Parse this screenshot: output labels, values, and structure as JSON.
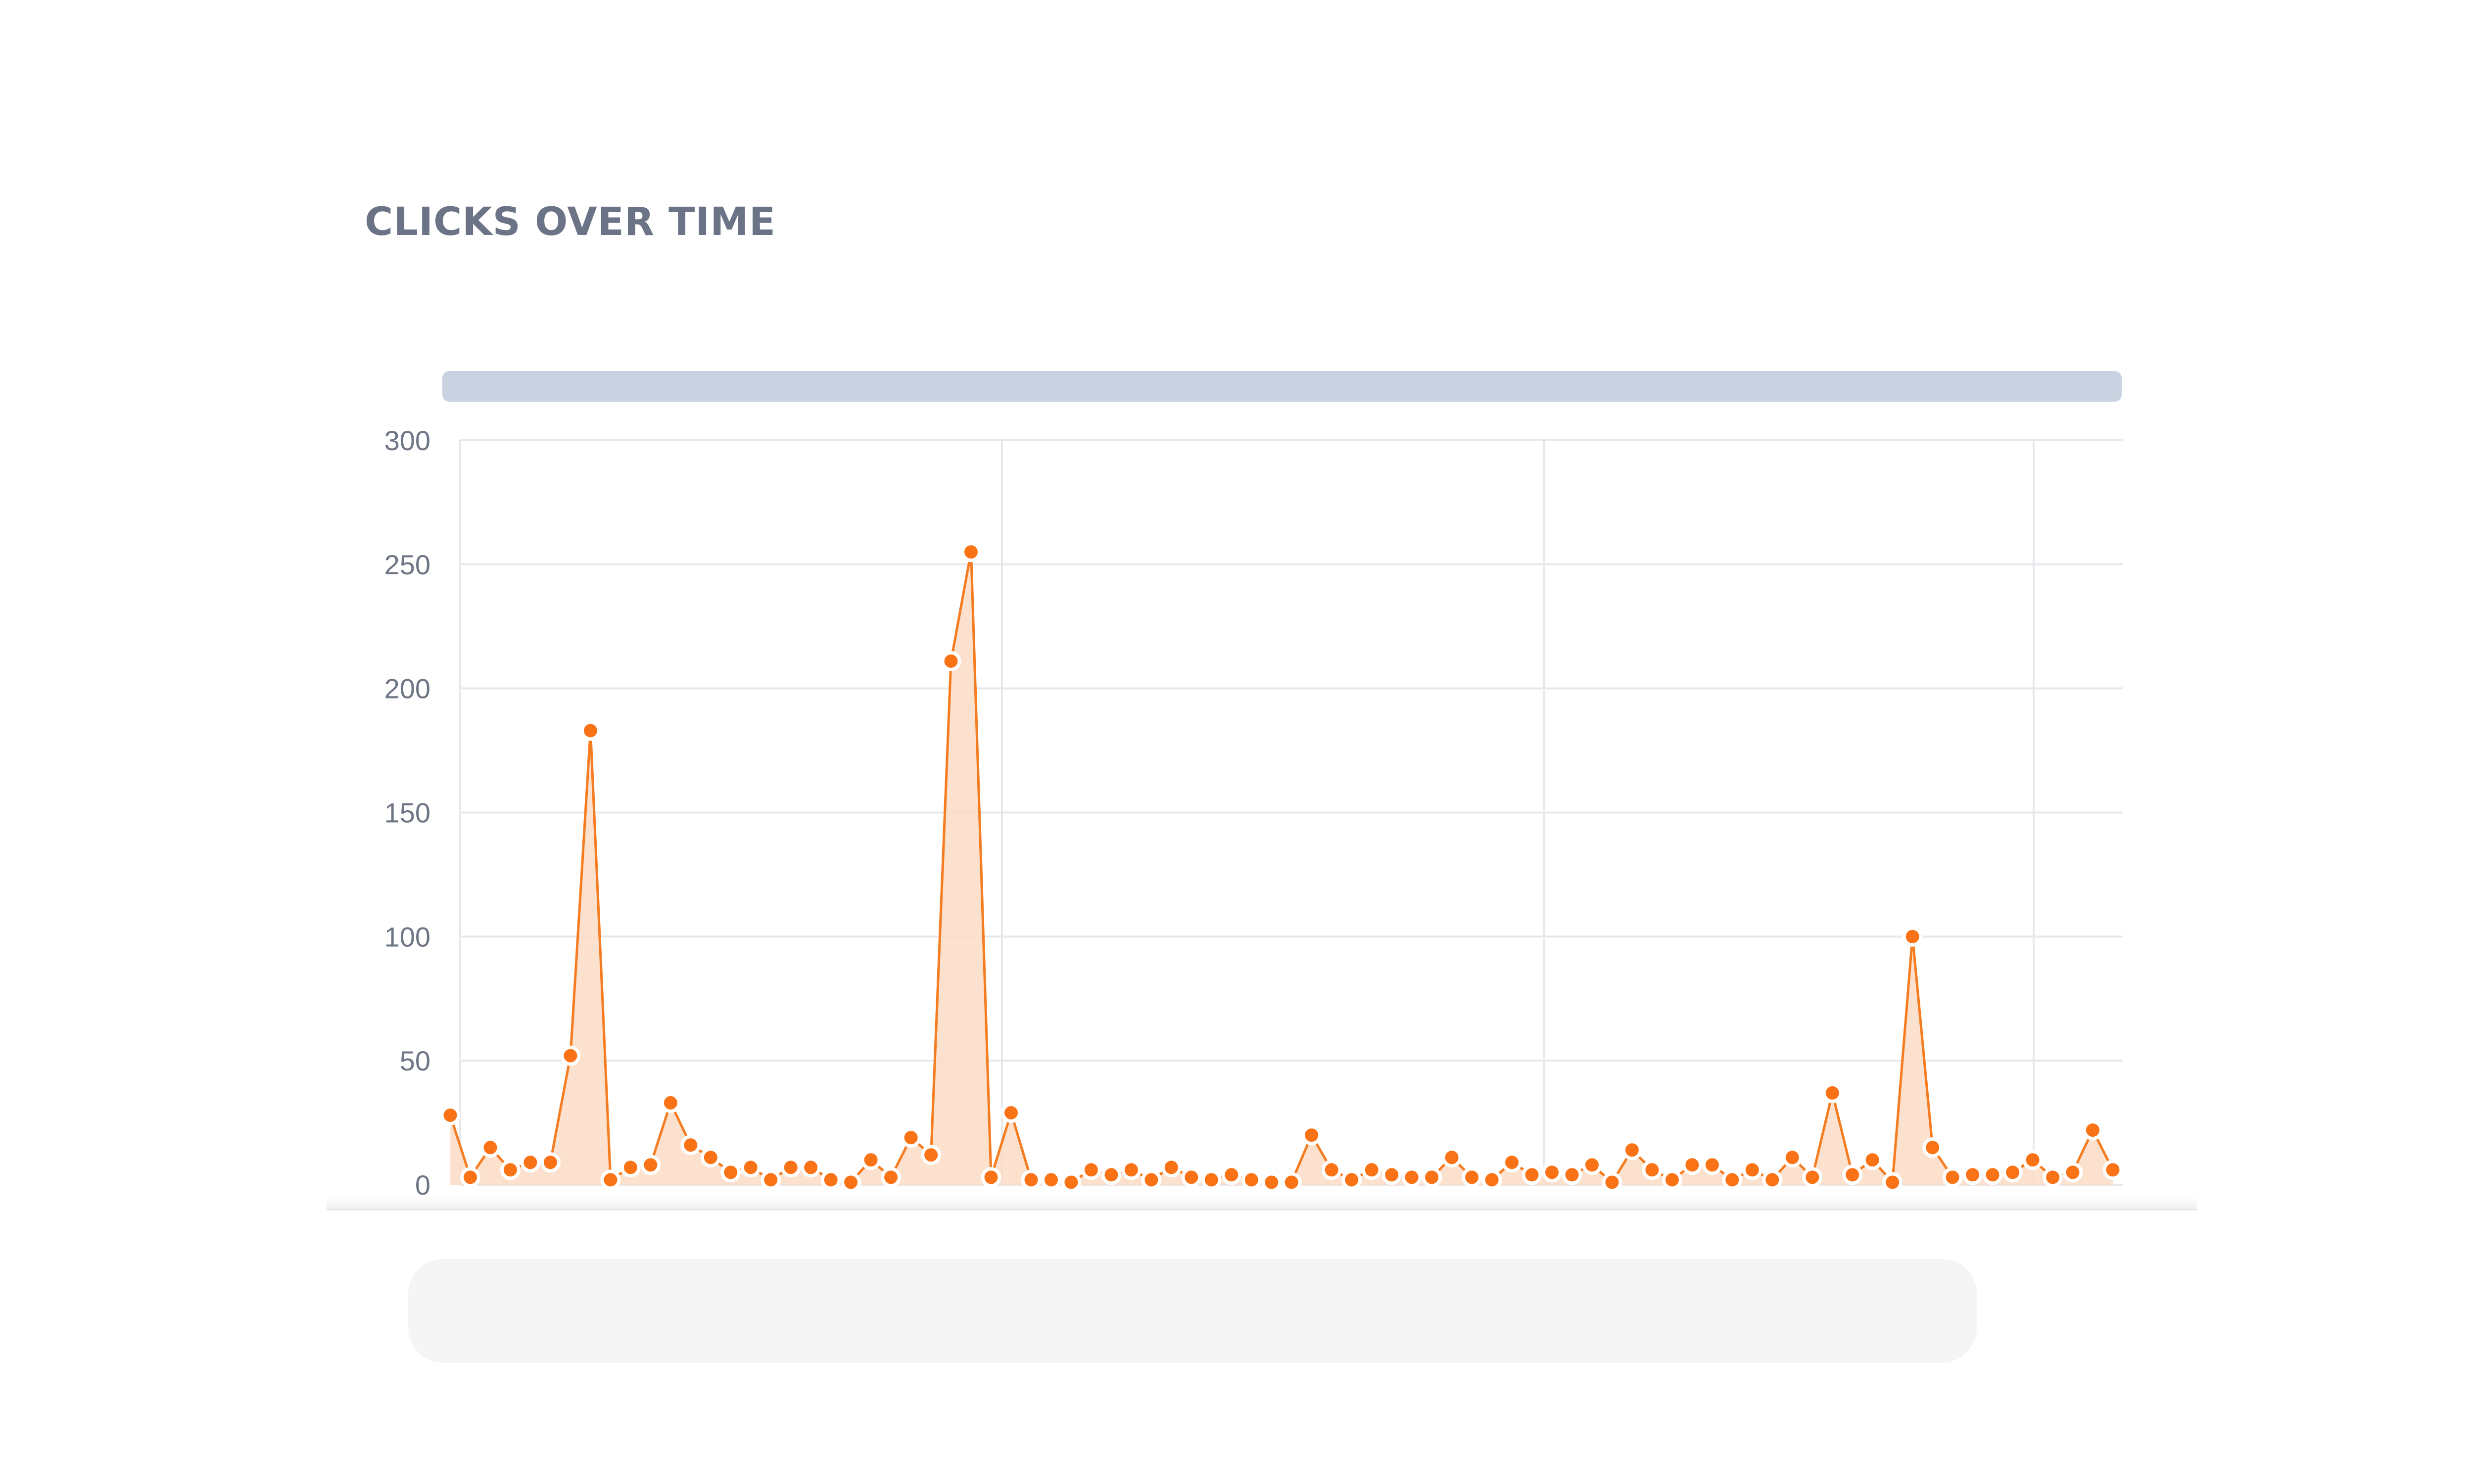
{
  "title": "CLICKS OVER TIME",
  "colors": {
    "line": "#f57c20",
    "area": "#fcdcc6",
    "point": "#f97316",
    "point_stroke": "#ffffff",
    "grid": "#e6e8ec",
    "scrollbar": "#c8d2e0",
    "title": "#6b7386"
  },
  "chart_data": {
    "type": "area",
    "title": "CLICKS OVER TIME",
    "xlabel": "",
    "ylabel": "",
    "ylim": [
      0,
      300
    ],
    "y_ticks": [
      "0",
      "50",
      "100",
      "150",
      "200",
      "250",
      "300"
    ],
    "grid": true,
    "vertical_gridlines": 3,
    "series": [
      {
        "values": [
          28,
          3,
          15,
          6,
          9,
          9,
          52,
          183,
          2,
          7,
          8,
          33,
          16,
          11,
          5,
          7,
          2,
          7,
          7,
          2,
          1,
          10,
          3,
          19,
          12,
          211,
          255,
          3,
          29,
          2,
          2,
          1,
          6,
          4,
          6,
          2,
          7,
          3,
          2,
          4,
          2,
          1,
          1,
          20,
          6,
          2,
          6,
          4,
          3,
          3,
          11,
          3,
          2,
          9,
          4,
          5,
          4,
          8,
          1,
          14,
          6,
          2,
          8,
          8,
          2,
          6,
          2,
          11,
          3,
          37,
          4,
          10,
          1,
          100,
          15,
          3,
          4,
          4,
          5,
          10,
          3,
          5,
          22,
          6
        ]
      }
    ]
  }
}
